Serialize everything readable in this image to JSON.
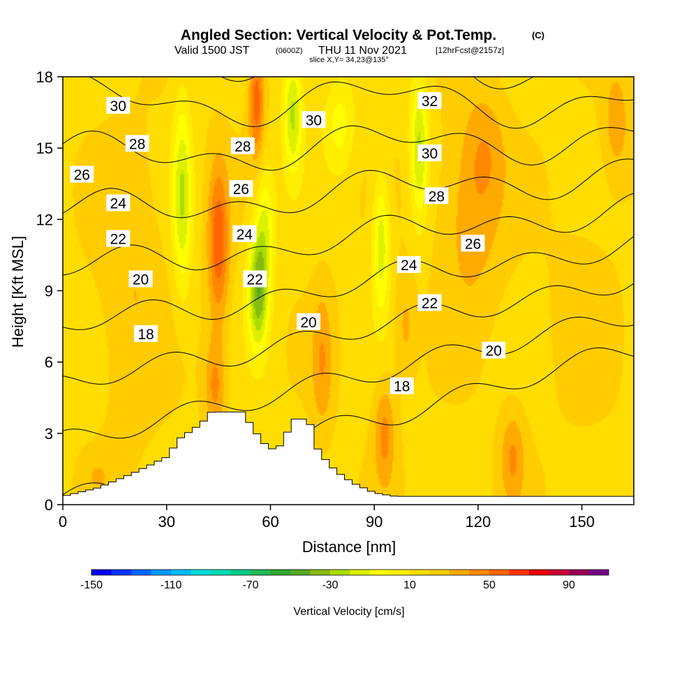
{
  "chart_data": {
    "type": "heatmap",
    "title": "Angled Section: Vertical Velocity & Pot.Temp.",
    "title_mark": "(C)",
    "subtitle_main": "Valid 1500 JST",
    "subtitle_z": "(0600Z)",
    "subtitle_date": "THU 11 Nov 2021",
    "subtitle_fcst": "[12hrFcst@2157z]",
    "slice_label": "slice X,Y= 34,23@135°",
    "xlabel": "Distance [nm]",
    "ylabel": "Height [Kft MSL]",
    "xlim": [
      0,
      165
    ],
    "ylim": [
      0,
      18
    ],
    "x_ticks": [
      0,
      30,
      60,
      90,
      120,
      150
    ],
    "x_tick_labels": [
      "0",
      "30",
      "60",
      "90",
      "120",
      "150"
    ],
    "y_ticks": [
      0,
      3,
      6,
      9,
      12,
      15,
      18
    ],
    "y_tick_labels": [
      "0",
      "3",
      "6",
      "9",
      "12",
      "15",
      "18"
    ],
    "colorbar": {
      "label": "Vertical Velocity [cm/s]",
      "min": -150,
      "max": 110,
      "step": 10,
      "tick_values": [
        -150,
        -110,
        -70,
        -30,
        10,
        50,
        90
      ],
      "tick_labels": [
        "-150",
        "-110",
        "-70",
        "-30",
        "10",
        "50",
        "90"
      ],
      "colors": [
        "#0000ee",
        "#0033ff",
        "#0066ff",
        "#0099ff",
        "#00bbff",
        "#00dddd",
        "#00dcb4",
        "#00cc88",
        "#22bb55",
        "#33aa33",
        "#55aa22",
        "#88bb11",
        "#aadd00",
        "#ddf000",
        "#ffff00",
        "#ffee00",
        "#ffdd00",
        "#ffcc00",
        "#ffaa00",
        "#ff8800",
        "#ff6600",
        "#ff3300",
        "#ee0000",
        "#cc0033",
        "#990055",
        "#770088"
      ]
    },
    "terrain_top_kft": [
      [
        0,
        0.35
      ],
      [
        10,
        0.7
      ],
      [
        20,
        1.3
      ],
      [
        30,
        2.0
      ],
      [
        34,
        2.8
      ],
      [
        40,
        3.4
      ],
      [
        43,
        3.9
      ],
      [
        52,
        3.9
      ],
      [
        55,
        3.2
      ],
      [
        58,
        2.6
      ],
      [
        61,
        2.3
      ],
      [
        64,
        2.6
      ],
      [
        66,
        3.6
      ],
      [
        71,
        3.6
      ],
      [
        74,
        2.2
      ],
      [
        79,
        1.4
      ],
      [
        84,
        0.9
      ],
      [
        90,
        0.5
      ],
      [
        96,
        0.35
      ],
      [
        165,
        0.35
      ]
    ],
    "velocity_features": [
      {
        "x": 34.5,
        "z": 13.0,
        "wx": 2.8,
        "wz": 4.0,
        "w": -38
      },
      {
        "x": 45.0,
        "z": 11.0,
        "wx": 3.0,
        "wz": 3.3,
        "w": 40
      },
      {
        "x": 44.0,
        "z": 5.0,
        "wx": 3.0,
        "wz": 2.0,
        "w": 25
      },
      {
        "x": 56.5,
        "z": 9.0,
        "wx": 3.0,
        "wz": 2.5,
        "w": -55
      },
      {
        "x": 58.5,
        "z": 12.0,
        "wx": 3.0,
        "wz": 2.5,
        "w": -25
      },
      {
        "x": 66.5,
        "z": 16.5,
        "wx": 2.8,
        "wz": 2.6,
        "w": -40
      },
      {
        "x": 80.0,
        "z": 16.0,
        "wx": 4.5,
        "wz": 2.0,
        "w": -22
      },
      {
        "x": 92.0,
        "z": 11.0,
        "wx": 2.5,
        "wz": 3.0,
        "w": -35
      },
      {
        "x": 103.0,
        "z": 15.0,
        "wx": 2.6,
        "wz": 3.0,
        "w": -40
      },
      {
        "x": 56.0,
        "z": 17.0,
        "wx": 2.2,
        "wz": 2.5,
        "w": 38
      },
      {
        "x": 75.0,
        "z": 6.0,
        "wx": 3.0,
        "wz": 3.0,
        "w": 20
      },
      {
        "x": 93.0,
        "z": 3.0,
        "wx": 3.0,
        "wz": 2.2,
        "w": 25
      },
      {
        "x": 99.0,
        "z": 7.5,
        "wx": 3.0,
        "wz": 2.2,
        "w": 15
      },
      {
        "x": 118.0,
        "z": 12.0,
        "wx": 9.0,
        "wz": 4.0,
        "w": 18
      },
      {
        "x": 130.0,
        "z": 2.0,
        "wx": 3.5,
        "wz": 2.0,
        "w": 22
      },
      {
        "x": 122.0,
        "z": 15.0,
        "wx": 6.0,
        "wz": 2.5,
        "w": 15
      },
      {
        "x": 20.0,
        "z": 9.0,
        "wx": 9.0,
        "wz": 6.0,
        "w": 12
      },
      {
        "x": 150.0,
        "z": 8.0,
        "wx": 9.0,
        "wz": 4.0,
        "w": 8
      },
      {
        "x": 10.0,
        "z": 1.2,
        "wx": 4.0,
        "wz": 0.8,
        "w": 10
      },
      {
        "x": 160.0,
        "z": 16.0,
        "wx": 4.0,
        "wz": 2.5,
        "w": 18
      }
    ],
    "theta_labels": [
      {
        "text": "30",
        "x": 16.0,
        "z": 16.8
      },
      {
        "text": "28",
        "x": 21.5,
        "z": 15.2
      },
      {
        "text": "26",
        "x": 5.5,
        "z": 13.9
      },
      {
        "text": "24",
        "x": 16.0,
        "z": 12.7
      },
      {
        "text": "22",
        "x": 16.0,
        "z": 11.2
      },
      {
        "text": "20",
        "x": 22.5,
        "z": 9.5
      },
      {
        "text": "18",
        "x": 24.0,
        "z": 7.2
      },
      {
        "text": "28",
        "x": 52.0,
        "z": 15.1
      },
      {
        "text": "26",
        "x": 51.5,
        "z": 13.3
      },
      {
        "text": "24",
        "x": 52.5,
        "z": 11.4
      },
      {
        "text": "22",
        "x": 55.5,
        "z": 9.5
      },
      {
        "text": "20",
        "x": 71.0,
        "z": 7.7
      },
      {
        "text": "30",
        "x": 72.5,
        "z": 16.2
      },
      {
        "text": "32",
        "x": 106.0,
        "z": 17.0
      },
      {
        "text": "30",
        "x": 106.0,
        "z": 14.8
      },
      {
        "text": "28",
        "x": 108.0,
        "z": 13.0
      },
      {
        "text": "26",
        "x": 118.5,
        "z": 11.0
      },
      {
        "text": "24",
        "x": 100.0,
        "z": 10.1
      },
      {
        "text": "22",
        "x": 106.0,
        "z": 8.5
      },
      {
        "text": "20",
        "x": 124.5,
        "z": 6.5
      },
      {
        "text": "18",
        "x": 98.0,
        "z": 5.0
      }
    ]
  }
}
